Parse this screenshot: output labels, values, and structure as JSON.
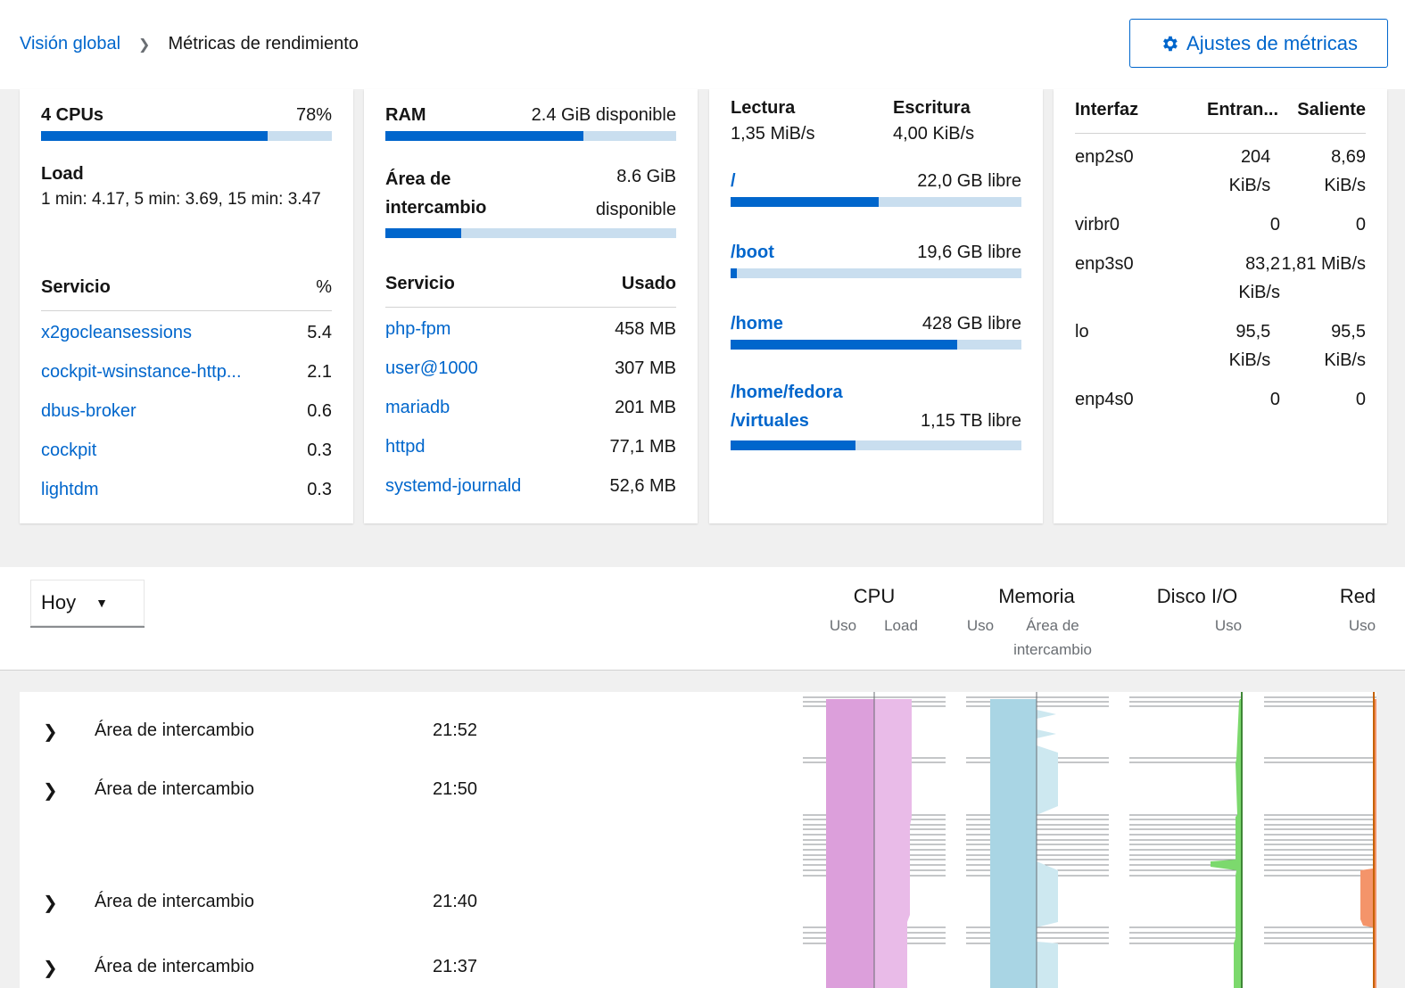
{
  "breadcrumb": {
    "parent": "Visión global",
    "current": "Métricas de rendimiento"
  },
  "settings_button": {
    "label": "Ajustes de métricas",
    "icon": "gear-icon"
  },
  "cpu_card": {
    "title": "4 CPUs",
    "usage": "78%",
    "usage_fraction": 0.78,
    "load_label": "Load",
    "load_value": "1 min: 4.17, 5 min: 3.69, 15 min: 3.47",
    "table_headers": [
      "Servicio",
      "%"
    ],
    "rows": [
      {
        "name": "x2gocleansessions",
        "value": "5.4"
      },
      {
        "name": "cockpit-wsinstance-http...",
        "value": "2.1"
      },
      {
        "name": "dbus-broker",
        "value": "0.6"
      },
      {
        "name": "cockpit",
        "value": "0.3"
      },
      {
        "name": "lightdm",
        "value": "0.3"
      }
    ]
  },
  "ram_card": {
    "title": "RAM",
    "available": "2.4 GiB disponible",
    "ram_fraction": 0.68,
    "swap_label": "Área de intercambio",
    "swap_value": "8.6 GiB disponible",
    "swap_fraction": 0.26,
    "table_headers": [
      "Servicio",
      "Usado"
    ],
    "rows": [
      {
        "name": "php-fpm",
        "value": "458 MB"
      },
      {
        "name": "user@1000",
        "value": "307 MB"
      },
      {
        "name": "mariadb",
        "value": "201 MB"
      },
      {
        "name": "httpd",
        "value": "77,1 MB"
      },
      {
        "name": "systemd-journald",
        "value": "52,6 MB"
      }
    ]
  },
  "disk_card": {
    "read_label": "Lectura",
    "read_value": "1,35 MiB/s",
    "write_label": "Escritura",
    "write_value": "4,00 KiB/s",
    "mounts": [
      {
        "path": "/",
        "free": "22,0 GB libre",
        "fraction": 0.51
      },
      {
        "path": "/boot",
        "free": "19,6 GB libre",
        "fraction": 0.02
      },
      {
        "path": "/home",
        "free": "428 GB libre",
        "fraction": 0.78
      },
      {
        "path": "/home/fedora /virtuales",
        "free": "1,15 TB libre",
        "fraction": 0.43
      }
    ]
  },
  "net_card": {
    "headers": [
      "Interfaz",
      "Entran...",
      "Saliente"
    ],
    "rows": [
      {
        "iface": "enp2s0",
        "in": "204 KiB/s",
        "out": "8,69 KiB/s"
      },
      {
        "iface": "virbr0",
        "in": "0",
        "out": "0"
      },
      {
        "iface": "enp3s0",
        "in": "83,2 KiB/s",
        "out": "1,81 MiB/s"
      },
      {
        "iface": "lo",
        "in": "95,5 KiB/s",
        "out": "95,5 KiB/s"
      },
      {
        "iface": "enp4s0",
        "in": "0",
        "out": "0"
      }
    ]
  },
  "period": {
    "selected": "Hoy"
  },
  "graph_headers": {
    "cpu": "CPU",
    "cpu_sub1": "Uso",
    "cpu_sub2": "Load",
    "mem": "Memoria",
    "mem_sub1": "Uso",
    "mem_sub2": "Área de intercambio",
    "disk": "Disco I/O",
    "disk_sub": "Uso",
    "net": "Red",
    "net_sub": "Uso"
  },
  "events": [
    {
      "name": "Área de intercambio",
      "time": "21:52"
    },
    {
      "name": "Área de intercambio",
      "time": "21:50"
    },
    {
      "name": "Área de intercambio",
      "time": "21:40"
    },
    {
      "name": "Área de intercambio",
      "time": "21:37"
    }
  ],
  "colors": {
    "accent": "#0066cc",
    "cpu": "#dc9fdb",
    "memory": "#a9d5e4",
    "disk": "#7cd96d",
    "network": "#f4946a"
  }
}
